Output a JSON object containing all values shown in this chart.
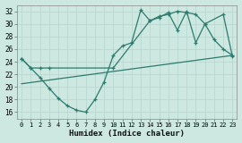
{
  "xlabel": "Humidex (Indice chaleur)",
  "xlim": [
    -0.5,
    23.5
  ],
  "ylim": [
    15,
    33
  ],
  "yticks": [
    16,
    18,
    20,
    22,
    24,
    26,
    28,
    30,
    32
  ],
  "xticks": [
    0,
    1,
    2,
    3,
    4,
    5,
    6,
    7,
    8,
    9,
    10,
    11,
    12,
    13,
    14,
    15,
    16,
    17,
    18,
    19,
    20,
    21,
    22,
    23
  ],
  "background_color": "#cce8e0",
  "grid_color": "#aaccC4",
  "line_color": "#2d7a6e",
  "line1_x": [
    0,
    1,
    2,
    3,
    4,
    5,
    6,
    7,
    8,
    9,
    10,
    11,
    12,
    13,
    14,
    15,
    16,
    17,
    18,
    19,
    20,
    21,
    22,
    23
  ],
  "line1_y": [
    24.5,
    23.0,
    21.5,
    19.8,
    18.2,
    17.0,
    16.3,
    16.0,
    18.0,
    20.8,
    25.0,
    26.5,
    27.0,
    32.2,
    30.5,
    31.0,
    31.8,
    29.0,
    32.0,
    27.0,
    30.0,
    27.5,
    26.0,
    25.0
  ],
  "line2_x": [
    0,
    23
  ],
  "line2_y": [
    20.5,
    25.0
  ],
  "line3_x": [
    0,
    1,
    2,
    3,
    10,
    14,
    15,
    16,
    17,
    18,
    19,
    20,
    22,
    23
  ],
  "line3_y": [
    24.5,
    23.0,
    23.0,
    23.0,
    23.0,
    30.5,
    31.2,
    31.5,
    32.0,
    31.8,
    31.5,
    30.0,
    31.5,
    24.8
  ]
}
